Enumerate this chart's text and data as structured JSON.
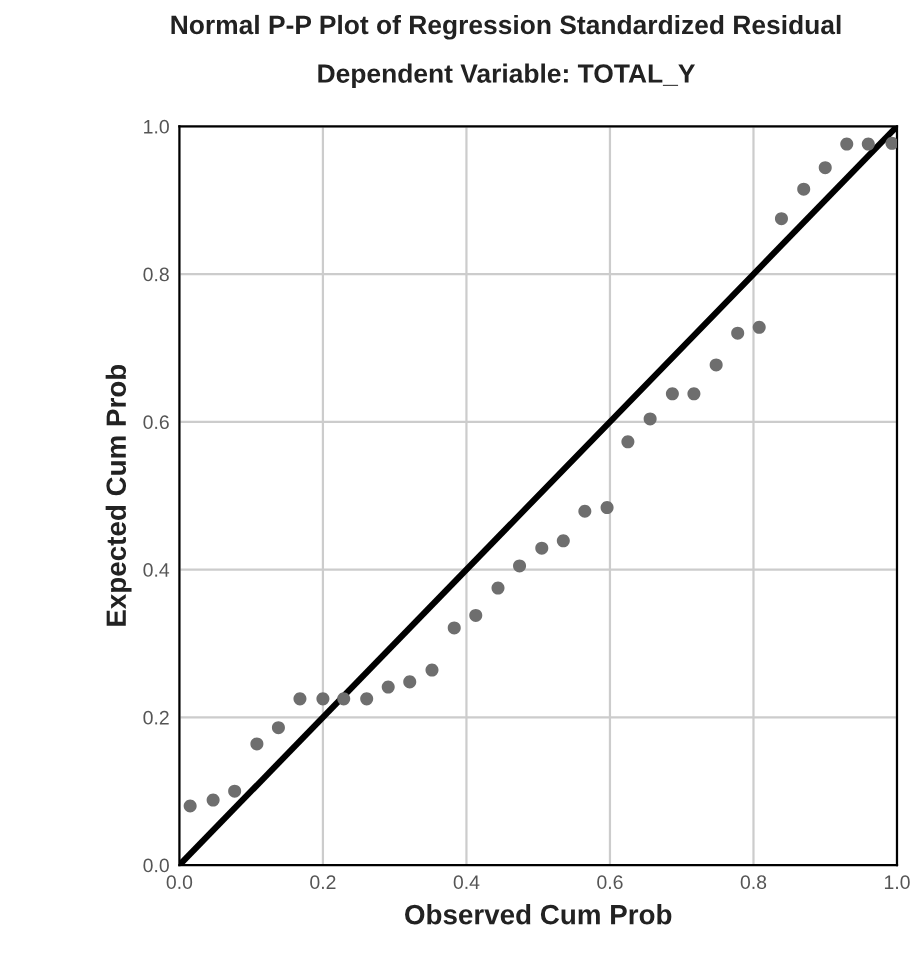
{
  "chart_data": {
    "type": "scatter",
    "title": "Normal P-P Plot of Regression Standardized Residual",
    "subtitle": "Dependent Variable: TOTAL_Y",
    "xlabel": "Observed Cum Prob",
    "ylabel": "Expected Cum Prob",
    "series": [
      {
        "color": "#6e6e6e",
        "marker": "circle",
        "x": [
          0.015,
          0.047,
          0.077,
          0.108,
          0.138,
          0.168,
          0.2,
          0.229,
          0.261,
          0.291,
          0.321,
          0.352,
          0.383,
          0.413,
          0.444,
          0.474,
          0.505,
          0.535,
          0.565,
          0.596,
          0.625,
          0.656,
          0.687,
          0.717,
          0.748,
          0.778,
          0.808,
          0.839,
          0.87,
          0.9,
          0.93,
          0.96,
          0.993
        ],
        "values": [
          0.08,
          0.088,
          0.1,
          0.164,
          0.186,
          0.225,
          0.225,
          0.225,
          0.225,
          0.241,
          0.248,
          0.264,
          0.321,
          0.338,
          0.375,
          0.405,
          0.429,
          0.439,
          0.479,
          0.484,
          0.573,
          0.604,
          0.638,
          0.638,
          0.677,
          0.72,
          0.728,
          0.875,
          0.915,
          0.944,
          0.976,
          0.976,
          0.977
        ]
      },
      {
        "type": "line",
        "color": "#000000",
        "x": [
          0,
          1
        ],
        "values": [
          0,
          1
        ],
        "line_style": "solid"
      }
    ],
    "xlim": [
      0,
      1
    ],
    "ylim": [
      0,
      1
    ],
    "xticks": [
      {
        "value": 0,
        "label": "0.0"
      },
      {
        "value": 0.2,
        "label": "0.2"
      },
      {
        "value": 0.4,
        "label": "0.4"
      },
      {
        "value": 0.6,
        "label": "0.6"
      },
      {
        "value": 0.8,
        "label": "0.8"
      },
      {
        "value": 1,
        "label": "1.0"
      }
    ],
    "yticks": [
      {
        "value": 0,
        "label": "0.0"
      },
      {
        "value": 0.2,
        "label": "0.2"
      },
      {
        "value": 0.4,
        "label": "0.4"
      },
      {
        "value": 0.6,
        "label": "0.6"
      },
      {
        "value": 0.8,
        "label": "0.8"
      },
      {
        "value": 1,
        "label": "1.0"
      }
    ],
    "grid": true
  }
}
